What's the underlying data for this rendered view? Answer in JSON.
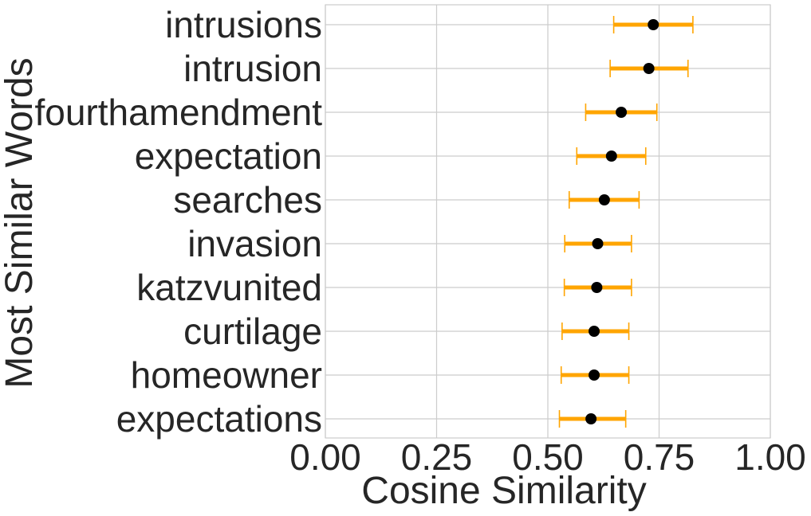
{
  "chart_data": {
    "type": "dot-errorbar",
    "title": "",
    "xlabel": "Cosine Similarity",
    "ylabel": "Most Similar Words",
    "xlim": [
      0,
      1
    ],
    "xticks": [
      0,
      0.25,
      0.5,
      0.75,
      1
    ],
    "xtick_labels": [
      "0.00",
      "0.25",
      "0.50",
      "0.75",
      "1.00"
    ],
    "grid": true,
    "categories": [
      "intrusions",
      "intrusion",
      "fourthamendment",
      "expectation",
      "searches",
      "invasion",
      "katzvunited",
      "curtilage",
      "homeowner",
      "expectations"
    ],
    "values": [
      0.737,
      0.727,
      0.665,
      0.643,
      0.627,
      0.612,
      0.61,
      0.604,
      0.604,
      0.597
    ],
    "lower": [
      0.648,
      0.64,
      0.585,
      0.565,
      0.548,
      0.538,
      0.537,
      0.532,
      0.53,
      0.526
    ],
    "upper": [
      0.826,
      0.815,
      0.745,
      0.72,
      0.705,
      0.688,
      0.688,
      0.682,
      0.682,
      0.675
    ],
    "colors": {
      "point": "#000000",
      "errorbar": "#FFA500",
      "grid": "#cccccc",
      "text": "#262626"
    }
  }
}
